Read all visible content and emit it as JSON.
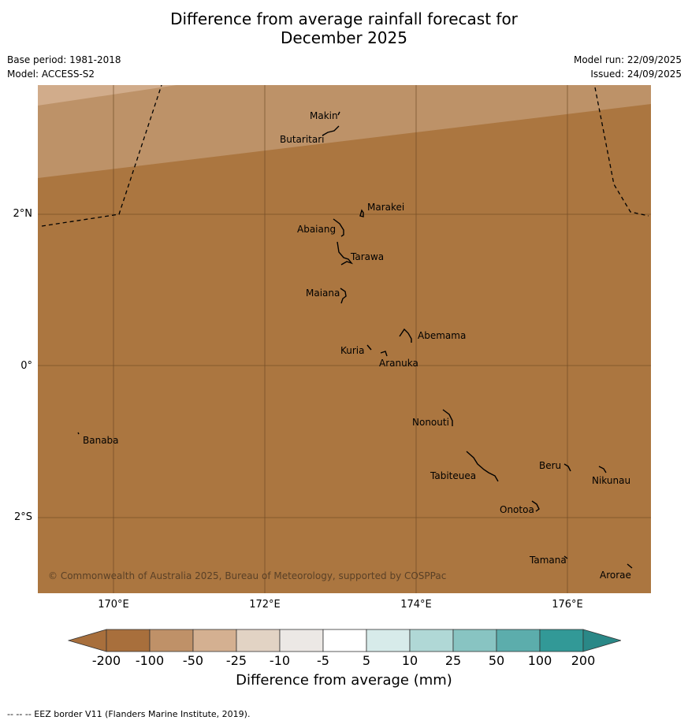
{
  "header": {
    "title_line1": "Difference from average rainfall forecast for",
    "title_line2": "December 2025",
    "base_period": "Base period: 1981-2018",
    "model": "Model: ACCESS-S2",
    "model_run": "Model run: 22/09/2025",
    "issued": "Issued: 24/09/2025"
  },
  "map": {
    "copyright": "© Commonwealth of Australia 2025, Bureau of Meteorology, supported by COSPPac",
    "latitude_labels": [
      "2°N",
      "0°",
      "2°S"
    ],
    "longitude_labels": [
      "170°E",
      "172°E",
      "174°E",
      "176°E"
    ],
    "places": [
      "Makin",
      "Butaritari",
      "Marakei",
      "Abaiang",
      "Tarawa",
      "Maiana",
      "Abemama",
      "Kuria",
      "Aranuka",
      "Nonouti",
      "Banaba",
      "Beru",
      "Nikunau",
      "Tabiteuea",
      "Onotoa",
      "Tamana",
      "Arorae"
    ],
    "fill_colors": {
      "base": "#ab7640",
      "mid": "#bd9268",
      "light": "#d1ac8b"
    }
  },
  "colorbar": {
    "label": "Difference from average (mm)",
    "ticks": [
      "-200",
      "-100",
      "-50",
      "-25",
      "-10",
      "-5",
      "5",
      "10",
      "25",
      "50",
      "100",
      "200"
    ],
    "colors": [
      "#a86f3c",
      "#a86f3c",
      "#bf9168",
      "#d4b091",
      "#e2d3c4",
      "#ece8e5",
      "#ffffff",
      "#d7ebea",
      "#b0d8d6",
      "#88c4c2",
      "#5cadac",
      "#329997",
      "#2a8887"
    ]
  },
  "footnote": "--  --  -- EEZ border V11 (Flanders Marine Institute, 2019)."
}
